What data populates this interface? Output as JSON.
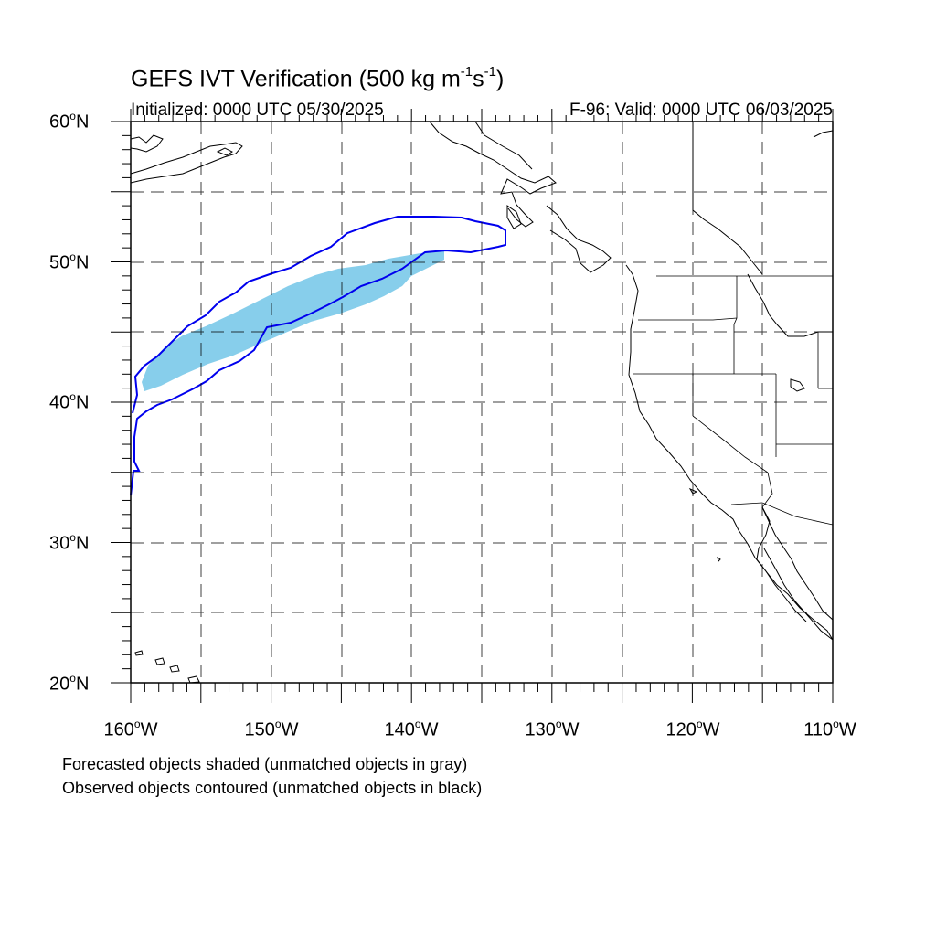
{
  "title": {
    "main": "GEFS IVT Verification (500 kg m",
    "sup1": "-1",
    "mid": "s",
    "sup2": "-1",
    "end": ")"
  },
  "initialized_label": "Initialized: 0000 UTC 05/30/2025",
  "valid_label": "F-96: Valid: 0000 UTC 06/03/2025",
  "lat_labels": [
    "60",
    "50",
    "40",
    "30",
    "20"
  ],
  "lat_suffix": "N",
  "lon_labels": [
    "160",
    "150",
    "140",
    "130",
    "120",
    "110"
  ],
  "lon_suffix": "W",
  "degree": "o",
  "footnotes": {
    "forecast": "Forecasted objects shaded (unmatched objects in gray)",
    "observed": "Observed objects contoured (unmatched objects in black)"
  },
  "map_extent": {
    "lon_min": -160,
    "lon_max": -110,
    "lat_min": 20,
    "lat_max": 60
  },
  "colors": {
    "forecast_fill": "#87ceeb",
    "observed_contour": "#0000ee",
    "coastline": "#000000",
    "grid": "#000000"
  }
}
